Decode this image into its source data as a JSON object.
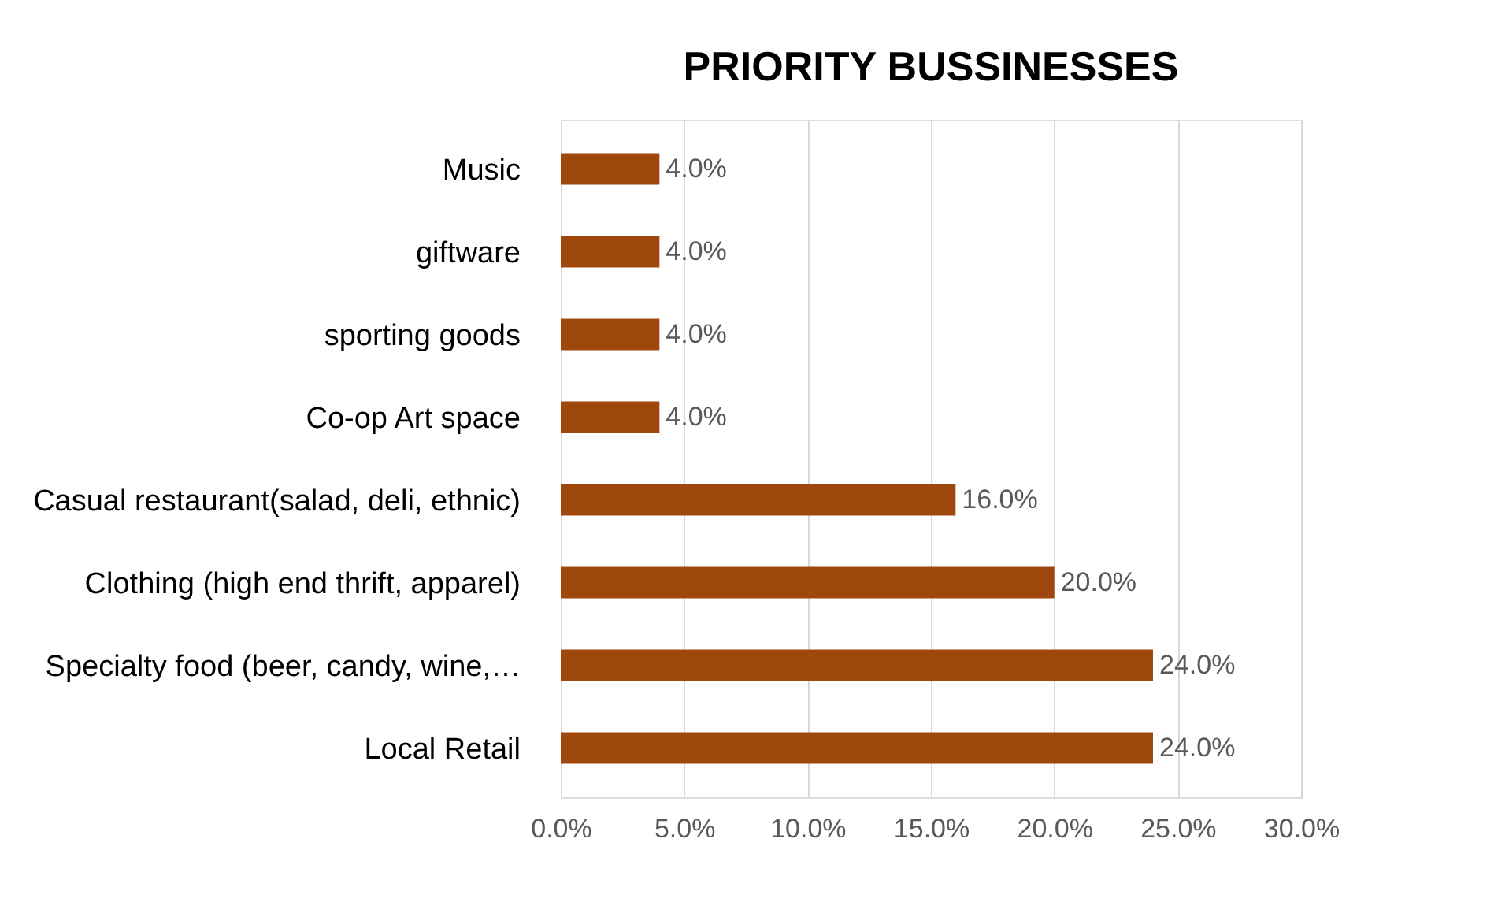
{
  "chart_data": {
    "type": "bar",
    "orientation": "horizontal",
    "title": "PRIORITY BUSSINESSES",
    "categories": [
      "Music",
      "giftware",
      "sporting goods",
      "Co-op Art space",
      "Casual restaurant(salad, deli, ethnic)",
      "Clothing (high end thrift, apparel)",
      "Specialty food (beer, candy, wine,…",
      "Local Retail"
    ],
    "values": [
      4,
      4,
      4,
      4,
      16,
      20,
      24,
      24
    ],
    "value_labels": [
      "4.0%",
      "4.0%",
      "4.0%",
      "4.0%",
      "16.0%",
      "20.0%",
      "24.0%",
      "24.0%"
    ],
    "color": "#9e480e",
    "xlim": [
      0,
      30
    ],
    "xticks": [
      {
        "value": 0,
        "label": "0.0%"
      },
      {
        "value": 5,
        "label": "5.0%"
      },
      {
        "value": 10,
        "label": "10.0%"
      },
      {
        "value": 15,
        "label": "15.0%"
      },
      {
        "value": 20,
        "label": "20.0%"
      },
      {
        "value": 25,
        "label": "25.0%"
      },
      {
        "value": 30,
        "label": "30.0%"
      }
    ],
    "grid": "x"
  }
}
